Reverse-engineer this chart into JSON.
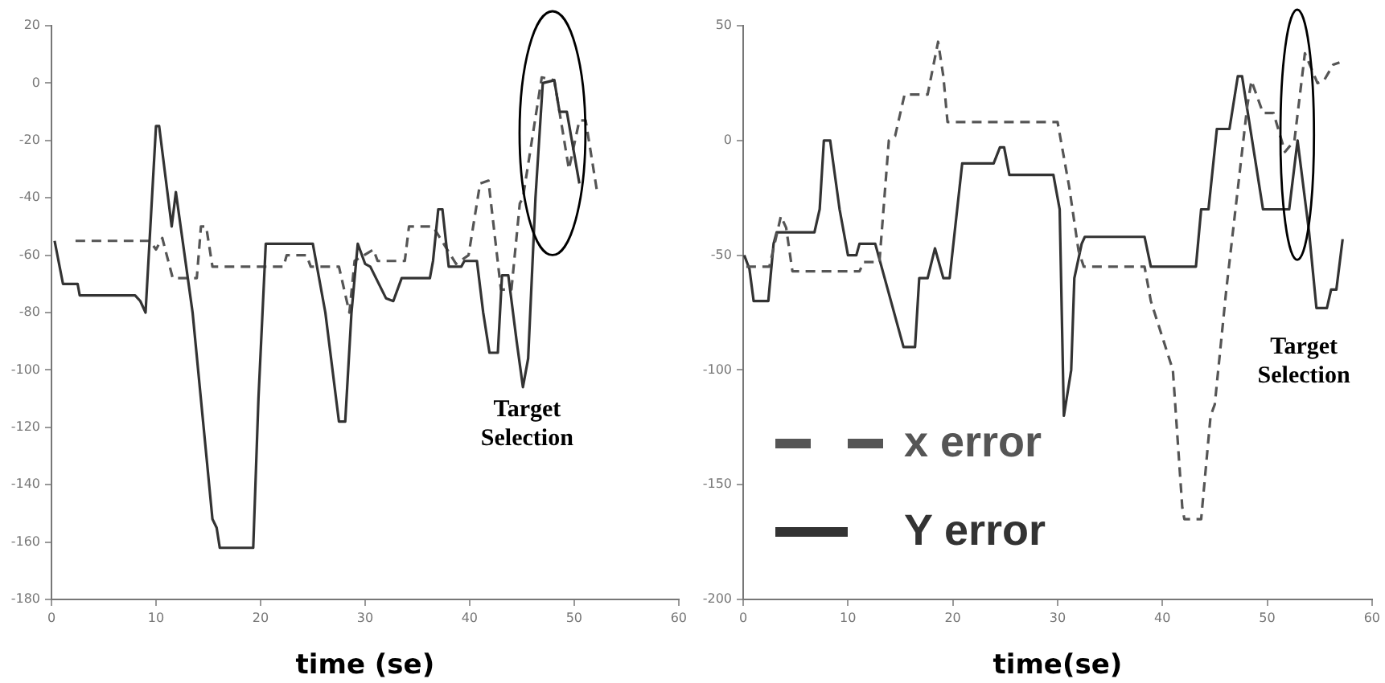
{
  "chart_data": [
    {
      "type": "line",
      "xlabel": "time (se)",
      "xlim": [
        0,
        60
      ],
      "xticks": [
        0,
        10,
        20,
        30,
        40,
        50,
        60
      ],
      "ylim": [
        -180,
        20
      ],
      "yticks": [
        -180,
        -160,
        -140,
        -120,
        -100,
        -80,
        -60,
        -40,
        -20,
        0,
        20
      ],
      "grid": false,
      "legend": false,
      "marker": "none",
      "annotations": [
        "Target Selection"
      ],
      "series": [
        {
          "color": "#333333",
          "line_style": "solid",
          "x": [
            0.3,
            1.1,
            2.5,
            2.7,
            8,
            8.5,
            9,
            10,
            10.3,
            11.5,
            11.9,
            13.5,
            15.4,
            15.8,
            16.1,
            19.3,
            19.8,
            20.5,
            25,
            26.2,
            27.5,
            28.1,
            28.7,
            29.3,
            30,
            30.5,
            32,
            32.7,
            33.5,
            36.2,
            36.5,
            37,
            37.4,
            38,
            39.2,
            39.5,
            40.7,
            41.3,
            41.9,
            42.7,
            43.1,
            43.7,
            44.5,
            45.1,
            45.6,
            46.3,
            47,
            48.1,
            48.6,
            49.3,
            50.5
          ],
          "values": [
            -55,
            -70,
            -70,
            -74,
            -74,
            -76,
            -80,
            -15,
            -15,
            -50,
            -38,
            -80,
            -152,
            -155,
            -162,
            -162,
            -110,
            -56,
            -56,
            -80,
            -118,
            -118,
            -80,
            -56,
            -63,
            -64,
            -75,
            -76,
            -68,
            -68,
            -62,
            -44,
            -44,
            -64,
            -64,
            -62,
            -62,
            -80,
            -94,
            -94,
            -67,
            -67,
            -90,
            -106,
            -96,
            -40,
            0,
            1,
            -10,
            -10,
            -35
          ]
        },
        {
          "color": "#555555",
          "line_style": "dashed",
          "x": [
            2.3,
            9.4,
            10,
            10.6,
            11.6,
            13.9,
            14.3,
            14.8,
            15.4,
            22.2,
            22.5,
            24.4,
            24.8,
            27.5,
            28.5,
            29,
            30.8,
            31.2,
            33.8,
            34.2,
            36.5,
            38.7,
            39.9,
            41,
            41.8,
            43,
            44,
            44.8,
            45.1,
            46.9,
            48.1,
            49.5,
            50.5,
            51.1,
            52.2
          ],
          "values": [
            -55,
            -55,
            -58,
            -54,
            -68,
            -68,
            -50,
            -50,
            -64,
            -64,
            -60,
            -60,
            -64,
            -64,
            -80,
            -62,
            -58,
            -62,
            -62,
            -50,
            -50,
            -63,
            -60,
            -35,
            -34,
            -72,
            -72,
            -42,
            -40,
            2,
            1,
            -30,
            -13,
            -13,
            -38
          ]
        }
      ]
    },
    {
      "type": "line",
      "xlabel": "time(se)",
      "xlim": [
        0,
        60
      ],
      "xticks": [
        0,
        10,
        20,
        30,
        40,
        50,
        60
      ],
      "ylim": [
        -200,
        50
      ],
      "yticks": [
        -200,
        -150,
        -100,
        -50,
        0,
        50
      ],
      "grid": false,
      "legend": "bottom left",
      "marker": "none",
      "annotations": [
        "Target Selection"
      ],
      "series": [
        {
          "name": "x error",
          "color": "#555555",
          "line_style": "dashed",
          "x": [
            0.3,
            2.5,
            3.6,
            4.1,
            4.7,
            11.1,
            11.5,
            13,
            13.9,
            14.5,
            15.4,
            17.6,
            18.6,
            19.1,
            19.5,
            30,
            31.1,
            32,
            32.5,
            38.3,
            38.9,
            41,
            41.9,
            42.1,
            43.7,
            44.6,
            45,
            46.1,
            48.1,
            48.5,
            49.6,
            50.6,
            51.7,
            52.6,
            53.6,
            54.8,
            55.4,
            56.3,
            56.9
          ],
          "values": [
            -55,
            -55,
            -33,
            -38,
            -57,
            -57,
            -53,
            -53,
            0,
            2,
            20,
            20,
            43,
            28,
            8,
            8,
            -20,
            -48,
            -55,
            -55,
            -70,
            -100,
            -160,
            -165,
            -165,
            -120,
            -115,
            -65,
            15,
            26,
            12,
            12,
            -5,
            0,
            38,
            25,
            26,
            33,
            34
          ]
        },
        {
          "name": "Y error",
          "color": "#333333",
          "line_style": "solid",
          "x": [
            0.1,
            0.6,
            1,
            2.4,
            2.9,
            3.2,
            6.8,
            7.3,
            7.7,
            8.3,
            9.2,
            10,
            10.8,
            11.1,
            12.6,
            13.5,
            15.3,
            16.4,
            16.8,
            17.6,
            18.3,
            19.1,
            19.7,
            20.9,
            23.9,
            24.5,
            24.9,
            25.4,
            29.6,
            30.2,
            30.6,
            31.3,
            31.6,
            32.3,
            32.6,
            38.3,
            38.9,
            43.2,
            43.7,
            44.4,
            45.2,
            46.4,
            47.2,
            47.6,
            49.6,
            52.1,
            52.9,
            54,
            54.7,
            55.7,
            56.1,
            56.6,
            57.2
          ],
          "values": [
            -50,
            -56,
            -70,
            -70,
            -45,
            -40,
            -40,
            -30,
            0,
            0,
            -30,
            -50,
            -50,
            -45,
            -45,
            -60,
            -90,
            -90,
            -60,
            -60,
            -47,
            -60,
            -60,
            -10,
            -10,
            -3,
            -3,
            -15,
            -15,
            -30,
            -120,
            -100,
            -60,
            -45,
            -42,
            -42,
            -55,
            -55,
            -30,
            -30,
            5,
            5,
            28,
            28,
            -30,
            -30,
            0,
            -40,
            -73,
            -73,
            -65,
            -65,
            -43
          ]
        }
      ]
    }
  ]
}
